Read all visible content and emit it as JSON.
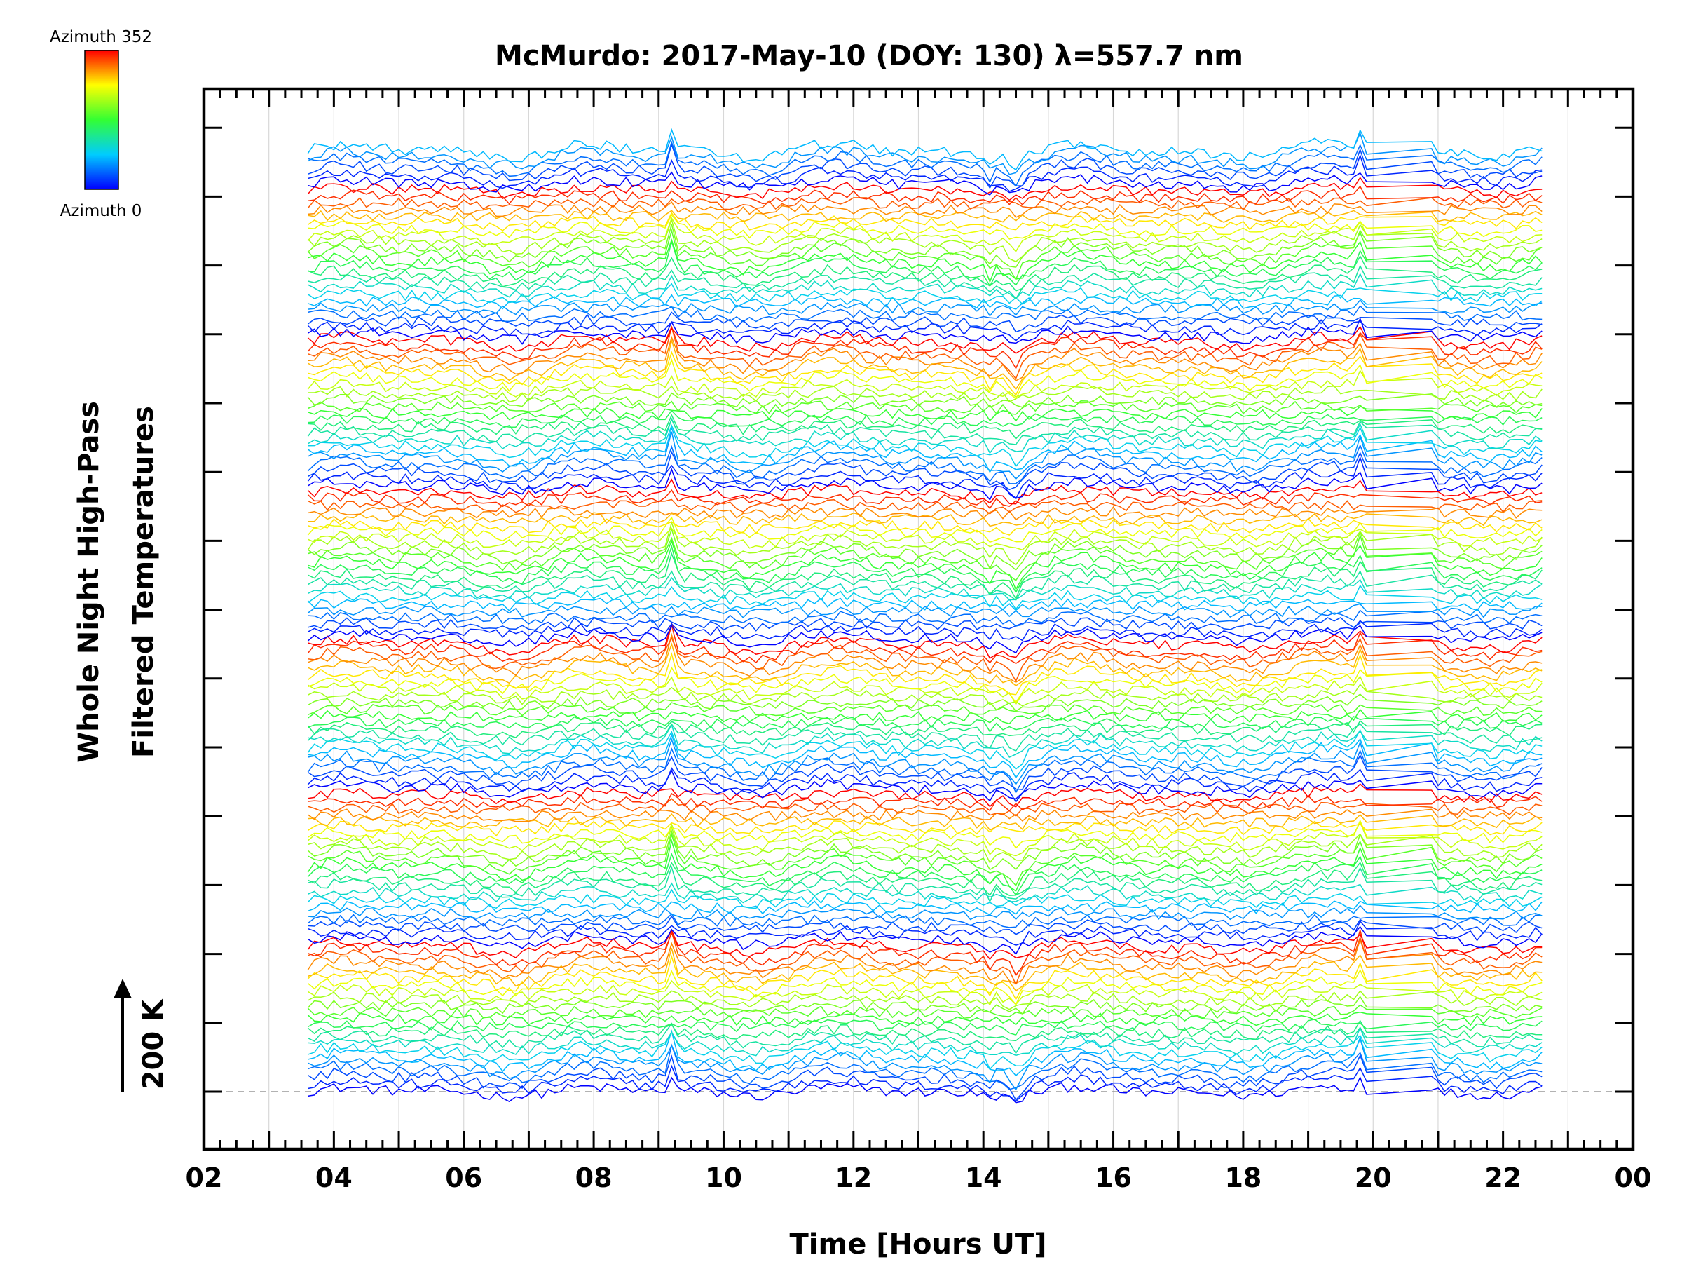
{
  "chart_data": {
    "type": "line",
    "title": "McMurdo: 2017-May-10 (DOY: 130) λ=557.7 nm",
    "xlabel": "Time [Hours UT]",
    "ylabel": [
      "Whole Night High-Pass",
      "Filtered Temperatures"
    ],
    "xlim": [
      2,
      24
    ],
    "xticks": [
      "02",
      "04",
      "06",
      "08",
      "10",
      "12",
      "14",
      "16",
      "18",
      "20",
      "22",
      "00"
    ],
    "x_start_hours": 3.6,
    "x_end_hours": 22.6,
    "sample_interval_hours": 0.1,
    "scale_bar_label": "200 K",
    "colorbar": {
      "top_label": "Azimuth 352",
      "bottom_label": "Azimuth 0"
    },
    "series_count": 144,
    "azimuth_step_deg": 16,
    "azimuths_per_group": 23,
    "events": [
      {
        "time": 9.2,
        "amplitude": 95
      },
      {
        "time": 14.5,
        "amplitude": -55
      },
      {
        "time": 19.8,
        "amplitude": 80
      },
      {
        "time": 20.9,
        "amplitude": 45
      }
    ],
    "data_gap_hours": [
      19.95,
      20.85
    ],
    "colors": {
      "azimuth_0": "#0000ff",
      "azimuth_mid": "#ffff00",
      "azimuth_352": "#ff0000",
      "grid": "#d8d8d8",
      "frame": "#000000"
    }
  }
}
